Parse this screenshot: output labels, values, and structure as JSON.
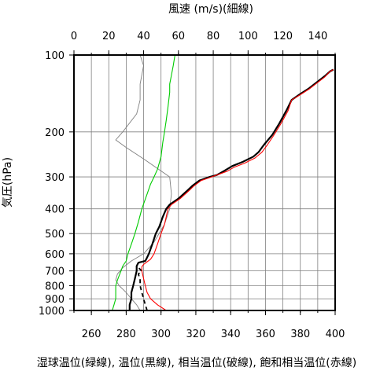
{
  "chart_data": {
    "type": "line",
    "top_xlabel": "風速 (m/s)(細線)",
    "bottom_xlabel": "湿球温位(緑線), 温位(黒線), 相当温位(破線), 飽和相当温位(赤線)",
    "ylabel": "気圧(hPa)",
    "y_scale": "log",
    "y_inverted": true,
    "ylim": [
      1000,
      100
    ],
    "y_ticks": [
      100,
      200,
      300,
      400,
      500,
      600,
      700,
      800,
      900,
      1000
    ],
    "x_bottom_lim": [
      250,
      400
    ],
    "x_bottom_ticks": [
      260,
      280,
      300,
      320,
      340,
      360,
      380,
      400
    ],
    "x_top_lim": [
      0,
      150
    ],
    "x_top_ticks": [
      0,
      20,
      40,
      60,
      80,
      100,
      120,
      140
    ],
    "grid": true,
    "colors": {
      "wind": "#808080",
      "wet_bulb": "#00cc00",
      "potential": "#000000",
      "equivalent": "#000000",
      "saturated": "#ff0000",
      "grid": "#808080"
    },
    "series": [
      {
        "axis": "top",
        "style": "thin",
        "points": [
          [
            38,
            1000
          ],
          [
            36,
            950
          ],
          [
            33,
            900
          ],
          [
            30,
            850
          ],
          [
            26,
            800
          ],
          [
            24,
            760
          ],
          [
            25,
            720
          ],
          [
            28,
            680
          ],
          [
            33,
            640
          ],
          [
            40,
            600
          ],
          [
            46,
            540
          ],
          [
            52,
            460
          ],
          [
            55,
            400
          ],
          [
            56,
            350
          ],
          [
            55,
            300
          ],
          [
            40,
            255
          ],
          [
            30,
            230
          ],
          [
            24,
            215
          ],
          [
            28,
            200
          ],
          [
            36,
            170
          ],
          [
            38,
            150
          ],
          [
            38,
            130
          ],
          [
            40,
            110
          ],
          [
            38,
            100
          ]
        ]
      },
      {
        "axis": "bottom",
        "style": "green",
        "points": [
          [
            272,
            1000
          ],
          [
            273,
            950
          ],
          [
            274,
            900
          ],
          [
            274,
            850
          ],
          [
            274,
            800
          ],
          [
            275,
            760
          ],
          [
            276,
            730
          ],
          [
            277,
            700
          ],
          [
            278,
            670
          ],
          [
            280,
            640
          ],
          [
            281,
            600
          ],
          [
            283,
            550
          ],
          [
            285,
            500
          ],
          [
            287,
            450
          ],
          [
            289,
            400
          ],
          [
            292,
            350
          ],
          [
            294,
            320
          ],
          [
            296,
            300
          ],
          [
            298,
            280
          ],
          [
            300,
            250
          ],
          [
            301,
            220
          ],
          [
            302,
            200
          ],
          [
            303,
            180
          ],
          [
            304,
            160
          ],
          [
            305,
            140
          ],
          [
            305,
            130
          ],
          [
            306,
            120
          ],
          [
            307,
            110
          ],
          [
            308,
            100
          ]
        ]
      },
      {
        "axis": "bottom",
        "style": "black",
        "points": [
          [
            282,
            1000
          ],
          [
            282,
            950
          ],
          [
            283,
            900
          ],
          [
            283,
            850
          ],
          [
            284,
            800
          ],
          [
            285,
            750
          ],
          [
            286,
            700
          ],
          [
            286,
            670
          ],
          [
            287,
            650
          ],
          [
            289,
            645
          ],
          [
            291,
            640
          ],
          [
            292,
            620
          ],
          [
            293,
            600
          ],
          [
            295,
            550
          ],
          [
            297,
            500
          ],
          [
            299,
            470
          ],
          [
            301,
            430
          ],
          [
            303,
            400
          ],
          [
            305,
            385
          ],
          [
            310,
            365
          ],
          [
            315,
            340
          ],
          [
            318,
            325
          ],
          [
            322,
            310
          ],
          [
            328,
            300
          ],
          [
            332,
            295
          ],
          [
            334,
            290
          ],
          [
            336,
            285
          ],
          [
            341,
            272
          ],
          [
            347,
            262
          ],
          [
            353,
            250
          ],
          [
            356,
            240
          ],
          [
            359,
            225
          ],
          [
            364,
            205
          ],
          [
            368,
            185
          ],
          [
            372,
            165
          ],
          [
            375,
            150
          ],
          [
            380,
            142
          ],
          [
            385,
            135
          ],
          [
            390,
            127
          ],
          [
            394,
            121
          ],
          [
            397,
            116
          ],
          [
            399,
            114
          ]
        ]
      },
      {
        "axis": "bottom",
        "style": "dashed",
        "points": [
          [
            292,
            1000
          ],
          [
            291,
            950
          ],
          [
            290,
            900
          ],
          [
            289,
            850
          ],
          [
            288,
            800
          ],
          [
            288,
            760
          ],
          [
            287,
            720
          ],
          [
            289,
            700
          ],
          [
            287,
            680
          ],
          [
            286,
            670
          ]
        ]
      },
      {
        "axis": "bottom",
        "style": "red",
        "points": [
          [
            303,
            1000
          ],
          [
            298,
            950
          ],
          [
            294,
            900
          ],
          [
            292,
            850
          ],
          [
            291,
            800
          ],
          [
            290,
            750
          ],
          [
            289,
            700
          ],
          [
            289,
            675
          ],
          [
            290,
            660
          ],
          [
            292,
            645
          ],
          [
            294,
            630
          ],
          [
            296,
            600
          ],
          [
            298,
            550
          ],
          [
            300,
            500
          ],
          [
            302,
            460
          ],
          [
            303,
            430
          ],
          [
            304,
            400
          ],
          [
            306,
            385
          ],
          [
            311,
            365
          ],
          [
            316,
            340
          ],
          [
            319,
            325
          ],
          [
            323,
            310
          ],
          [
            329,
            300
          ],
          [
            332,
            295
          ],
          [
            335,
            290
          ],
          [
            338,
            285
          ],
          [
            342,
            275
          ],
          [
            348,
            265
          ],
          [
            354,
            253
          ],
          [
            358,
            240
          ],
          [
            361,
            225
          ],
          [
            365,
            205
          ],
          [
            369,
            185
          ],
          [
            373,
            165
          ],
          [
            375,
            150
          ],
          [
            380,
            143
          ],
          [
            385,
            136
          ],
          [
            390,
            128
          ],
          [
            394,
            122
          ],
          [
            397,
            116
          ],
          [
            399,
            114
          ]
        ]
      }
    ]
  }
}
